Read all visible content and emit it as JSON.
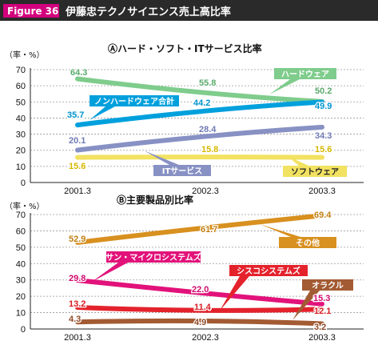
{
  "header": {
    "figure_label": "Figure 36",
    "title": "伊藤忠テクノサイエンス売上高比率"
  },
  "colors": {
    "header_bg": "#2a2a2a",
    "figure_badge": "#d3007d",
    "line_hardware": "#7fcc8c",
    "line_nonhardware": "#00a0dd",
    "line_it_service": "#8891c4",
    "line_software": "#f2e261",
    "line_other": "#d8901f",
    "line_sun": "#e2127a",
    "line_cisco": "#e4222c",
    "line_oracle": "#a35b33"
  },
  "chart_data": [
    {
      "type": "line",
      "title": "Ⓐハード・ソフト・ITサービス比率",
      "unit_label": "（率・%）",
      "categories": [
        "2001.3",
        "2002.3",
        "2003.3"
      ],
      "ylim": [
        0,
        70
      ],
      "yticks": [
        0,
        10,
        20,
        30,
        40,
        50,
        60,
        70
      ],
      "grid": true,
      "series": [
        {
          "name": "ハードウェア",
          "values": [
            64.3,
            55.8,
            50.2
          ],
          "labels": [
            "64.3",
            "55.8",
            "50.2"
          ],
          "color": "#7fcc8c",
          "label_color": "#5aaa6a"
        },
        {
          "name": "ノンハードウェア合計",
          "values": [
            35.7,
            44.2,
            49.9
          ],
          "labels": [
            "35.7",
            "44.2",
            "49.9"
          ],
          "color": "#00a0dd",
          "label_color": "#0095d0"
        },
        {
          "name": "ITサービス",
          "values": [
            20.1,
            28.4,
            34.3
          ],
          "labels": [
            "20.1",
            "28.4",
            "34.3"
          ],
          "color": "#8891c4",
          "label_color": "#6f7ab4"
        },
        {
          "name": "ソフトウェア",
          "values": [
            15.6,
            15.8,
            15.6
          ],
          "labels": [
            "15.6",
            "15.8",
            "15.6"
          ],
          "color": "#f2e261",
          "label_color": "#d6b800"
        }
      ]
    },
    {
      "type": "line",
      "title": "Ⓑ主要製品別比率",
      "unit_label": "（率・%）",
      "categories": [
        "2001.3",
        "2002.3",
        "2003.3"
      ],
      "ylim": [
        0,
        70
      ],
      "yticks": [
        0,
        10,
        20,
        30,
        40,
        50,
        60,
        70
      ],
      "grid": true,
      "series": [
        {
          "name": "その他",
          "values": [
            52.9,
            61.7,
            69.4
          ],
          "labels": [
            "52.9",
            "61.7",
            "69.4"
          ],
          "color": "#d8901f",
          "label_color": "#c17f12"
        },
        {
          "name": "サン・マイクロシステムズ",
          "values": [
            29.8,
            22.0,
            15.3
          ],
          "labels": [
            "29.8",
            "22.0",
            "15.3"
          ],
          "color": "#e2127a",
          "label_color": "#d00a6e"
        },
        {
          "name": "シスコシステムズ",
          "values": [
            13.2,
            11.4,
            12.1
          ],
          "labels": [
            "13.2",
            "11.4",
            "12.1"
          ],
          "color": "#e4222c",
          "label_color": "#d81b22"
        },
        {
          "name": "オラクル",
          "values": [
            4.3,
            4.9,
            3.2
          ],
          "labels": [
            "4.3",
            "4.9",
            "3.2"
          ],
          "color": "#a35b33",
          "label_color": "#8e4b28"
        }
      ]
    }
  ]
}
